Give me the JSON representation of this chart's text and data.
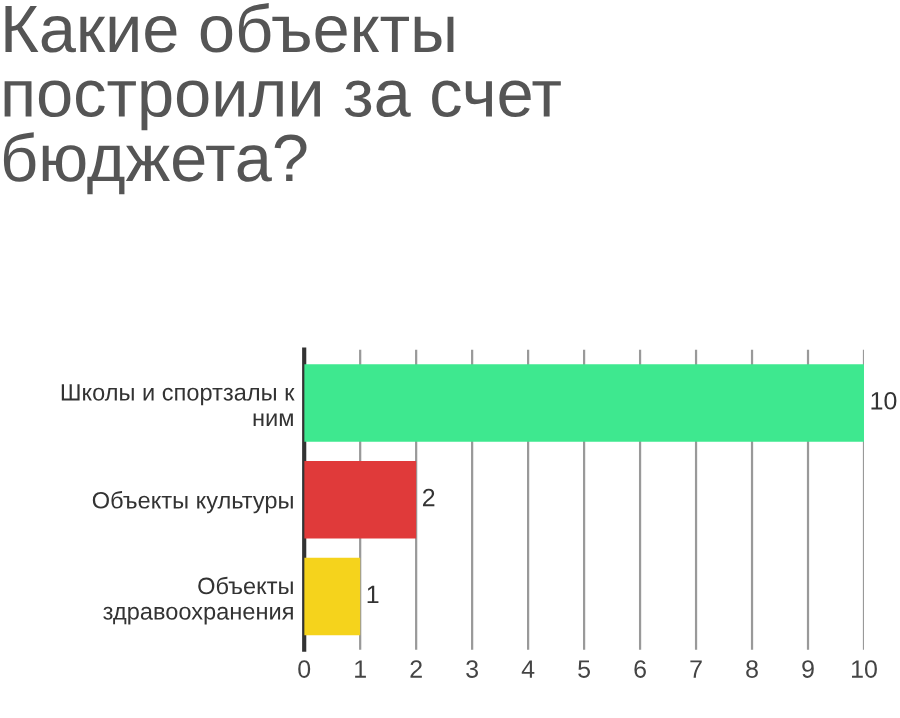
{
  "chart_data": {
    "type": "bar",
    "orientation": "horizontal",
    "title": "Какие объекты\nпостроили за счет\nбюджета?",
    "categories": [
      "Школы и спортзалы к\nним",
      "Объекты культуры",
      "Объекты\nздравоохранения"
    ],
    "values": [
      10,
      2,
      1
    ],
    "colors": [
      "#3ee88f",
      "#e03a3a",
      "#f5d31c"
    ],
    "xlim": [
      0,
      10
    ],
    "xticks": [
      0,
      1,
      2,
      3,
      4,
      5,
      6,
      7,
      8,
      9,
      10
    ],
    "grid": "x",
    "data_labels": true
  }
}
